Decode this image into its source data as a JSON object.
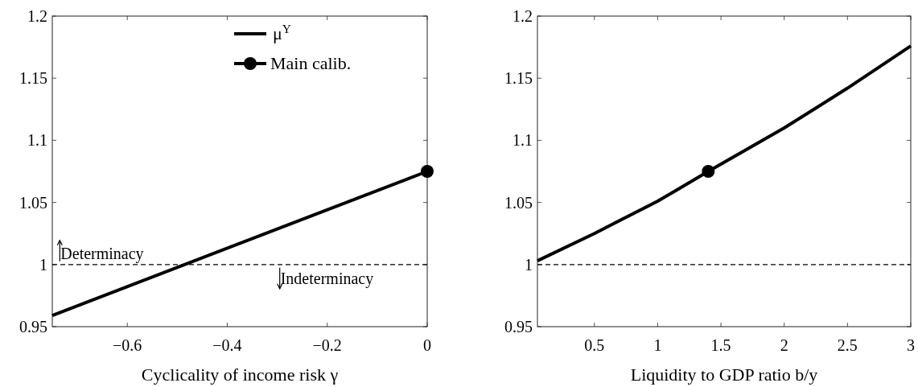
{
  "chart_data": [
    {
      "type": "line",
      "xlabel": "Cyclicality of income risk γ",
      "xlim": [
        -0.75,
        0
      ],
      "ylim": [
        0.95,
        1.2
      ],
      "xticks": [
        {
          "value": -0.6,
          "label": "−0.6"
        },
        {
          "value": -0.4,
          "label": "−0.4"
        },
        {
          "value": -0.2,
          "label": "−0.2"
        },
        0
      ],
      "yticks": [
        0.95,
        1,
        1.05,
        1.1,
        1.15,
        1.2
      ],
      "series": [
        {
          "name": "μ$^{Y}$",
          "color": "#000000",
          "x": [
            -0.75,
            0
          ],
          "values": [
            0.959,
            1.075
          ]
        },
        {
          "name": "Main calib.",
          "type": "scatter",
          "color": "#000000",
          "marker": "circle",
          "x": [
            0
          ],
          "values": [
            1.075
          ]
        }
      ],
      "ref_lines": [
        {
          "axis": "y",
          "value": 1,
          "line_style": "dashed",
          "color": "#000000"
        }
      ],
      "annotations": [
        {
          "text": "Determinacy",
          "x": -0.735,
          "y": 1.0
        },
        {
          "text": "Indeterminacy",
          "x": -0.295,
          "y": 1.0
        }
      ],
      "legend": "top right"
    },
    {
      "type": "line",
      "xlabel": "Liquidity to GDP ratio b/y",
      "xlim": [
        0.05,
        3
      ],
      "ylim": [
        0.95,
        1.2
      ],
      "xticks": [
        0.5,
        1,
        1.5,
        2,
        2.5,
        3
      ],
      "yticks": [
        0.95,
        1,
        1.05,
        1.1,
        1.15,
        1.2
      ],
      "series": [
        {
          "color": "#000000",
          "x": [
            0.05,
            0.5,
            1,
            1.15,
            1.4,
            2,
            2.5,
            3
          ],
          "values": [
            1.003,
            1.025,
            1.051,
            1.06,
            1.075,
            1.11,
            1.142,
            1.176
          ]
        },
        {
          "type": "scatter",
          "color": "#000000",
          "marker": "circle",
          "x": [
            1.4
          ],
          "values": [
            1.075
          ]
        }
      ],
      "ref_lines": [
        {
          "axis": "y",
          "value": 1,
          "line_style": "dashed",
          "color": "#000000"
        }
      ]
    }
  ]
}
